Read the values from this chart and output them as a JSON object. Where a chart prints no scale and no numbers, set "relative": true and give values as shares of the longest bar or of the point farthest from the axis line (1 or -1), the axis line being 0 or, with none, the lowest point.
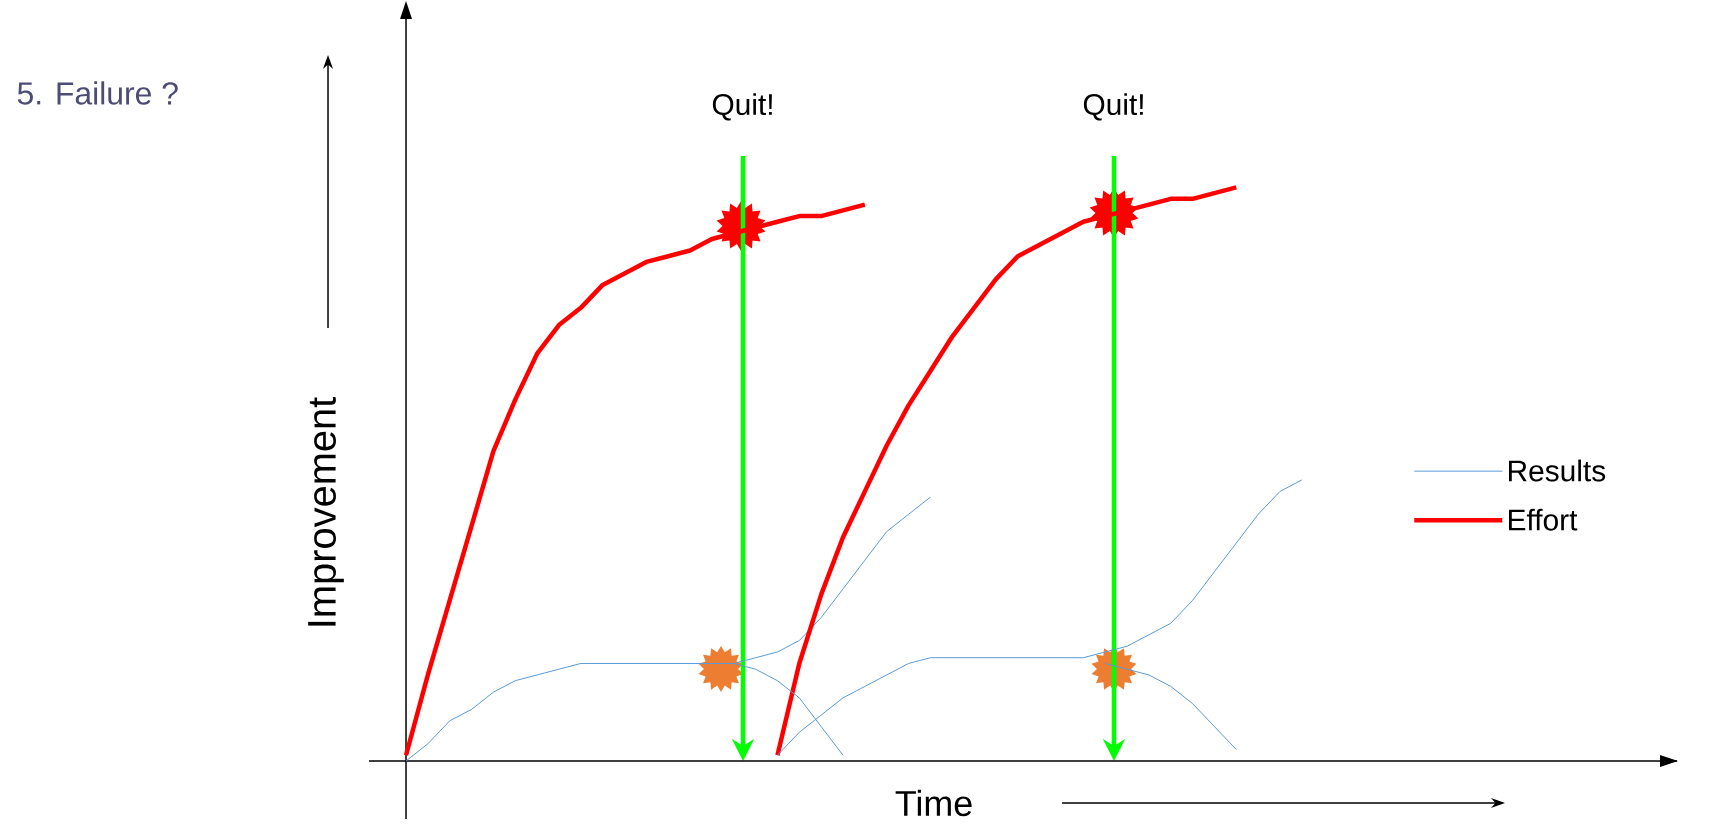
{
  "chart_data": {
    "type": "line",
    "title": "5.  Failure ?",
    "xlabel": "Time",
    "ylabel": "Improvement",
    "relative": true,
    "legend": "right",
    "categories": [
      null,
      null,
      null,
      null,
      null,
      null,
      null,
      null,
      null,
      null,
      null,
      null,
      null,
      null,
      null,
      null,
      null,
      null,
      null,
      null,
      null,
      null,
      null,
      null,
      null,
      null,
      null,
      null,
      null,
      null,
      null,
      null,
      null,
      null,
      null,
      null,
      null,
      null,
      null,
      null,
      null,
      null
    ],
    "series": [
      {
        "name": "Results",
        "color": "#5b9bd5",
        "values": [
          0,
          0.03,
          0.07,
          0.09,
          0.12,
          0.14,
          0.15,
          0.16,
          0.17,
          0.17,
          0.17,
          0.17,
          0.17,
          0.17,
          0.17,
          0.17,
          0.18,
          0.19,
          0.21,
          0.25,
          0.3,
          0.35,
          0.4,
          0.43,
          0.46,
          null,
          null,
          null,
          null,
          null,
          null,
          null,
          null,
          null,
          null,
          null,
          null,
          null,
          null,
          null,
          null,
          null
        ]
      },
      {
        "name": "Effort",
        "color": "#ff0000",
        "values": [
          0.01,
          0.15,
          0.28,
          0.41,
          0.54,
          0.63,
          0.71,
          0.76,
          0.79,
          0.83,
          0.85,
          0.87,
          0.88,
          0.89,
          0.91,
          0.92,
          0.93,
          0.94,
          0.95,
          0.95,
          0.96,
          0.97,
          null,
          null,
          null,
          null,
          null,
          null,
          null,
          null,
          null,
          null,
          null,
          null,
          null,
          null,
          null,
          null,
          null,
          null,
          null,
          null
        ]
      },
      {
        "color": "#ff0000",
        "values": [
          null,
          null,
          null,
          null,
          null,
          null,
          null,
          null,
          null,
          null,
          null,
          null,
          null,
          null,
          null,
          null,
          null,
          0.01,
          0.17,
          0.29,
          0.39,
          0.47,
          0.55,
          0.62,
          0.68,
          0.74,
          0.79,
          0.84,
          0.88,
          0.9,
          0.92,
          0.94,
          0.95,
          0.96,
          0.97,
          0.98,
          0.98,
          0.99,
          1.0,
          null,
          null,
          null
        ]
      },
      {
        "color": "#5b9bd5",
        "values": [
          null,
          null,
          null,
          null,
          null,
          null,
          null,
          null,
          null,
          null,
          null,
          null,
          null,
          null,
          null,
          0.17,
          0.16,
          0.14,
          0.11,
          0.06,
          0.01,
          null,
          null,
          null,
          null,
          null,
          null,
          null,
          null,
          null,
          null,
          null,
          null,
          null,
          null,
          null,
          null,
          null,
          null,
          null,
          null,
          null
        ]
      },
      {
        "color": "#5b9bd5",
        "values": [
          null,
          null,
          null,
          null,
          null,
          null,
          null,
          null,
          null,
          null,
          null,
          null,
          null,
          null,
          null,
          null,
          null,
          0.01,
          0.05,
          0.08,
          0.11,
          0.13,
          0.15,
          0.17,
          0.18,
          0.18,
          0.18,
          0.18,
          0.18,
          0.18,
          0.18,
          0.18,
          0.19,
          0.2,
          0.22,
          0.24,
          0.28,
          0.33,
          0.38,
          0.43,
          0.47,
          0.49
        ]
      },
      {
        "color": "#5b9bd5",
        "values": [
          null,
          null,
          null,
          null,
          null,
          null,
          null,
          null,
          null,
          null,
          null,
          null,
          null,
          null,
          null,
          null,
          null,
          null,
          null,
          null,
          null,
          null,
          null,
          null,
          null,
          null,
          null,
          null,
          null,
          null,
          null,
          null,
          0.17,
          0.16,
          0.15,
          0.13,
          0.1,
          0.06,
          0.02,
          null,
          null,
          null
        ]
      }
    ],
    "annotations": [
      "Quit!",
      "Quit!"
    ]
  }
}
